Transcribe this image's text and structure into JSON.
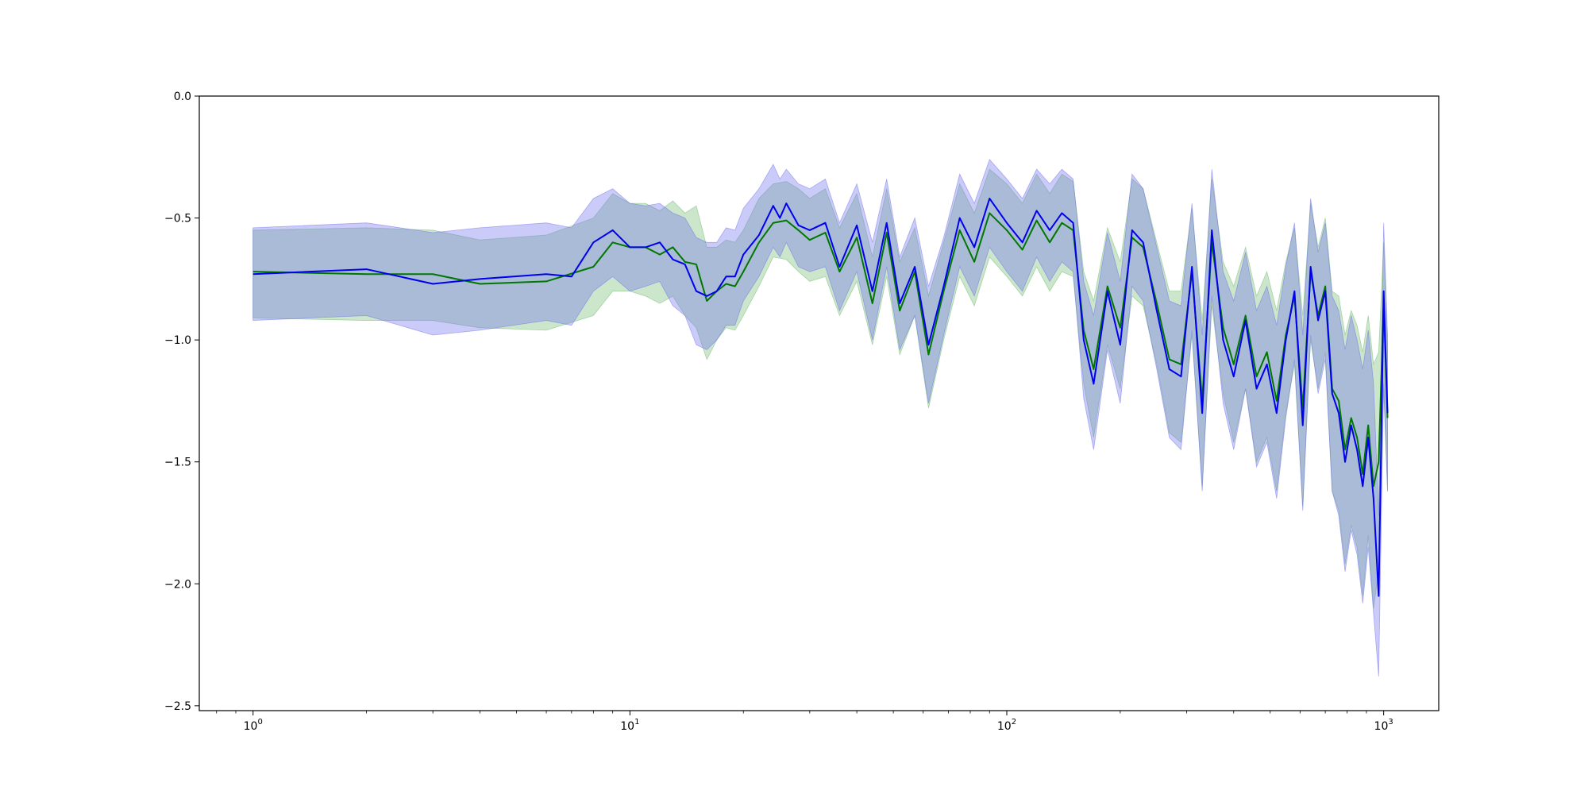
{
  "chart_data": {
    "type": "line",
    "title": "",
    "xlabel": "",
    "ylabel": "",
    "xscale": "log",
    "xlim": [
      0.72,
      1400
    ],
    "ylim": [
      -2.52,
      0.0
    ],
    "x_ticks": [
      {
        "value": 1,
        "base": "10",
        "exp": "0"
      },
      {
        "value": 10,
        "base": "10",
        "exp": "1"
      },
      {
        "value": 100,
        "base": "10",
        "exp": "2"
      },
      {
        "value": 1000,
        "base": "10",
        "exp": "3"
      }
    ],
    "y_ticks": [
      {
        "value": 0.0,
        "label": "0.0"
      },
      {
        "value": -0.5,
        "label": "−0.5"
      },
      {
        "value": -1.0,
        "label": "−1.0"
      },
      {
        "value": -1.5,
        "label": "−1.5"
      },
      {
        "value": -2.0,
        "label": "−2.0"
      },
      {
        "value": -2.5,
        "label": "−2.5"
      }
    ],
    "grid": false,
    "legend": "none",
    "colors": {
      "green_line": "#007700",
      "green_band": "#6ab66a",
      "blue_line": "#0000ee",
      "blue_band": "#6a6aee"
    },
    "series": [
      {
        "color": "#007700",
        "band_color": "#6ab66a",
        "x": [
          1,
          2,
          3,
          4,
          6,
          8,
          9,
          10,
          11,
          12,
          13,
          14,
          15,
          16,
          17,
          18,
          19,
          20,
          22,
          24,
          26,
          28,
          30,
          33,
          36,
          40,
          44,
          48,
          52,
          57,
          62,
          68,
          75,
          82,
          90,
          100,
          110,
          120,
          130,
          140,
          150,
          160,
          170,
          185,
          200,
          215,
          230,
          250,
          270,
          290,
          310,
          330,
          350,
          375,
          400,
          430,
          460,
          490,
          520,
          550,
          580,
          610,
          640,
          670,
          700,
          730,
          760,
          790,
          820,
          850,
          880,
          910,
          940,
          970,
          1000,
          1024
        ],
        "y": [
          -0.72,
          -0.73,
          -0.73,
          -0.77,
          -0.76,
          -0.7,
          -0.6,
          -0.62,
          -0.62,
          -0.65,
          -0.62,
          -0.68,
          -0.69,
          -0.84,
          -0.8,
          -0.77,
          -0.78,
          -0.72,
          -0.6,
          -0.52,
          -0.51,
          -0.55,
          -0.59,
          -0.56,
          -0.72,
          -0.58,
          -0.85,
          -0.56,
          -0.88,
          -0.72,
          -1.06,
          -0.8,
          -0.55,
          -0.68,
          -0.48,
          -0.55,
          -0.63,
          -0.51,
          -0.6,
          -0.52,
          -0.55,
          -0.96,
          -1.12,
          -0.78,
          -0.95,
          -0.58,
          -0.62,
          -0.85,
          -1.08,
          -1.1,
          -0.72,
          -1.25,
          -0.6,
          -0.95,
          -1.1,
          -0.9,
          -1.15,
          -1.05,
          -1.25,
          -0.98,
          -0.82,
          -1.28,
          -0.72,
          -0.9,
          -0.78,
          -1.2,
          -1.25,
          -1.45,
          -1.32,
          -1.4,
          -1.55,
          -1.35,
          -1.6,
          -1.5,
          -0.85,
          -1.32
        ],
        "lower": [
          -0.91,
          -0.92,
          -0.92,
          -0.95,
          -0.96,
          -0.9,
          -0.8,
          -0.8,
          -0.82,
          -0.85,
          -0.82,
          -0.9,
          -0.95,
          -1.08,
          -1.0,
          -0.95,
          -0.96,
          -0.9,
          -0.78,
          -0.66,
          -0.67,
          -0.72,
          -0.76,
          -0.74,
          -0.9,
          -0.76,
          -1.02,
          -0.74,
          -1.06,
          -0.9,
          -1.28,
          -1.0,
          -0.74,
          -0.86,
          -0.66,
          -0.74,
          -0.82,
          -0.7,
          -0.8,
          -0.72,
          -0.74,
          -1.18,
          -1.4,
          -1.02,
          -1.2,
          -0.82,
          -0.86,
          -1.1,
          -1.38,
          -1.42,
          -0.98,
          -1.6,
          -0.86,
          -1.22,
          -1.42,
          -1.2,
          -1.5,
          -1.4,
          -1.62,
          -1.3,
          -1.1,
          -1.68,
          -1.0,
          -1.2,
          -1.05,
          -1.62,
          -1.7,
          -1.92,
          -1.76,
          -1.85,
          -2.05,
          -1.8,
          -2.1,
          -1.95,
          -1.2,
          -1.62
        ],
        "upper": [
          -0.55,
          -0.54,
          -0.55,
          -0.59,
          -0.57,
          -0.5,
          -0.4,
          -0.44,
          -0.44,
          -0.47,
          -0.43,
          -0.48,
          -0.45,
          -0.62,
          -0.62,
          -0.59,
          -0.6,
          -0.55,
          -0.42,
          -0.36,
          -0.35,
          -0.38,
          -0.42,
          -0.38,
          -0.54,
          -0.4,
          -0.66,
          -0.38,
          -0.68,
          -0.54,
          -0.82,
          -0.6,
          -0.36,
          -0.48,
          -0.3,
          -0.36,
          -0.44,
          -0.32,
          -0.4,
          -0.32,
          -0.35,
          -0.72,
          -0.84,
          -0.54,
          -0.68,
          -0.34,
          -0.38,
          -0.6,
          -0.8,
          -0.8,
          -0.46,
          -0.92,
          -0.34,
          -0.68,
          -0.78,
          -0.62,
          -0.82,
          -0.72,
          -0.88,
          -0.68,
          -0.54,
          -0.9,
          -0.44,
          -0.62,
          -0.5,
          -0.8,
          -0.82,
          -0.98,
          -0.88,
          -0.94,
          -1.05,
          -0.9,
          -1.1,
          -1.05,
          -0.6,
          -1.02
        ]
      },
      {
        "color": "#0000ee",
        "band_color": "#6a6aee",
        "x": [
          1,
          2,
          3,
          4,
          6,
          7,
          8,
          9,
          10,
          11,
          12,
          13,
          14,
          15,
          16,
          17,
          18,
          19,
          20,
          22,
          24,
          25,
          26,
          28,
          30,
          33,
          36,
          40,
          44,
          48,
          52,
          57,
          62,
          68,
          75,
          82,
          90,
          100,
          110,
          120,
          130,
          140,
          150,
          160,
          170,
          185,
          200,
          215,
          230,
          250,
          270,
          290,
          310,
          330,
          350,
          375,
          400,
          430,
          460,
          490,
          520,
          550,
          580,
          610,
          640,
          670,
          700,
          730,
          760,
          790,
          820,
          850,
          880,
          910,
          940,
          970,
          1000,
          1024
        ],
        "y": [
          -0.73,
          -0.71,
          -0.77,
          -0.75,
          -0.73,
          -0.74,
          -0.6,
          -0.55,
          -0.62,
          -0.62,
          -0.6,
          -0.67,
          -0.69,
          -0.8,
          -0.82,
          -0.8,
          -0.74,
          -0.74,
          -0.65,
          -0.57,
          -0.45,
          -0.5,
          -0.44,
          -0.53,
          -0.55,
          -0.52,
          -0.7,
          -0.53,
          -0.8,
          -0.52,
          -0.85,
          -0.7,
          -1.02,
          -0.78,
          -0.5,
          -0.62,
          -0.42,
          -0.52,
          -0.6,
          -0.47,
          -0.55,
          -0.48,
          -0.52,
          -1.0,
          -1.18,
          -0.8,
          -1.02,
          -0.55,
          -0.6,
          -0.88,
          -1.12,
          -1.15,
          -0.7,
          -1.3,
          -0.55,
          -1.0,
          -1.15,
          -0.92,
          -1.2,
          -1.1,
          -1.3,
          -1.0,
          -0.8,
          -1.35,
          -0.7,
          -0.92,
          -0.8,
          -1.22,
          -1.3,
          -1.5,
          -1.35,
          -1.45,
          -1.6,
          -1.4,
          -1.65,
          -2.05,
          -0.8,
          -1.3
        ],
        "lower": [
          -0.92,
          -0.9,
          -0.98,
          -0.96,
          -0.92,
          -0.94,
          -0.8,
          -0.74,
          -0.8,
          -0.78,
          -0.76,
          -0.86,
          -0.9,
          -1.02,
          -1.04,
          -1.0,
          -0.94,
          -0.94,
          -0.84,
          -0.74,
          -0.62,
          -0.66,
          -0.6,
          -0.7,
          -0.72,
          -0.7,
          -0.88,
          -0.72,
          -1.0,
          -0.7,
          -1.04,
          -0.9,
          -1.26,
          -0.98,
          -0.7,
          -0.82,
          -0.62,
          -0.72,
          -0.8,
          -0.66,
          -0.76,
          -0.68,
          -0.72,
          -1.24,
          -1.45,
          -1.04,
          -1.26,
          -0.78,
          -0.84,
          -1.12,
          -1.4,
          -1.45,
          -0.96,
          -1.62,
          -0.82,
          -1.26,
          -1.45,
          -1.2,
          -1.52,
          -1.42,
          -1.65,
          -1.32,
          -1.08,
          -1.7,
          -0.98,
          -1.22,
          -1.08,
          -1.62,
          -1.72,
          -1.95,
          -1.78,
          -1.88,
          -2.08,
          -1.85,
          -2.12,
          -2.38,
          -1.18,
          -1.62
        ],
        "upper": [
          -0.54,
          -0.52,
          -0.56,
          -0.54,
          -0.52,
          -0.54,
          -0.42,
          -0.38,
          -0.44,
          -0.45,
          -0.44,
          -0.48,
          -0.5,
          -0.58,
          -0.6,
          -0.6,
          -0.54,
          -0.55,
          -0.46,
          -0.38,
          -0.28,
          -0.34,
          -0.3,
          -0.36,
          -0.38,
          -0.34,
          -0.52,
          -0.36,
          -0.6,
          -0.34,
          -0.66,
          -0.5,
          -0.78,
          -0.58,
          -0.32,
          -0.44,
          -0.26,
          -0.34,
          -0.42,
          -0.3,
          -0.36,
          -0.3,
          -0.34,
          -0.76,
          -0.9,
          -0.56,
          -0.76,
          -0.32,
          -0.38,
          -0.62,
          -0.84,
          -0.86,
          -0.44,
          -0.98,
          -0.3,
          -0.72,
          -0.84,
          -0.64,
          -0.88,
          -0.78,
          -0.94,
          -0.7,
          -0.52,
          -0.98,
          -0.42,
          -0.64,
          -0.52,
          -0.82,
          -0.88,
          -1.04,
          -0.9,
          -1.0,
          -1.12,
          -0.96,
          -1.18,
          -1.72,
          -0.52,
          -0.98
        ]
      }
    ]
  }
}
